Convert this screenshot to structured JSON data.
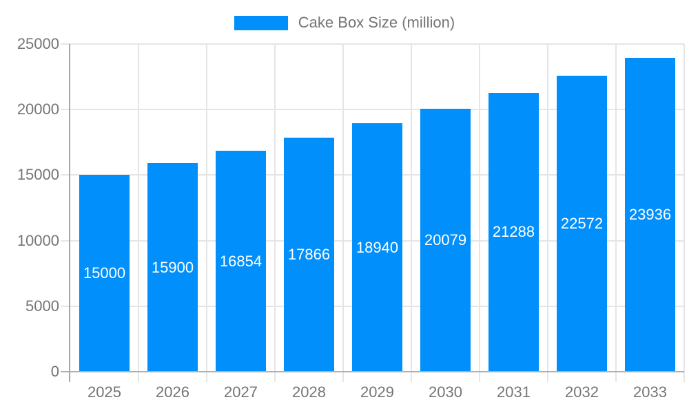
{
  "chart_data": {
    "type": "bar",
    "title": "",
    "legend": {
      "label": "Cake Box Size (million)",
      "position": "top",
      "marker_color": "#008FFB"
    },
    "categories": [
      "2025",
      "2026",
      "2027",
      "2028",
      "2029",
      "2030",
      "2031",
      "2032",
      "2033"
    ],
    "series": [
      {
        "name": "Cake Box Size (million)",
        "values": [
          15000,
          15900,
          16854,
          17866,
          18940,
          20079,
          21288,
          22572,
          23936
        ]
      }
    ],
    "xlabel": "",
    "ylabel": "",
    "ylim": [
      0,
      25000
    ],
    "ytick_step": 5000,
    "yticks": [
      0,
      5000,
      10000,
      15000,
      20000,
      25000
    ],
    "grid": true,
    "data_labels": true,
    "colors": {
      "bar": "#008FFB",
      "bar_label": "#FFFFFF",
      "axis_label": "#757575",
      "gridline": "#E5E5E5",
      "axis_line": "#A6A6A6"
    }
  }
}
